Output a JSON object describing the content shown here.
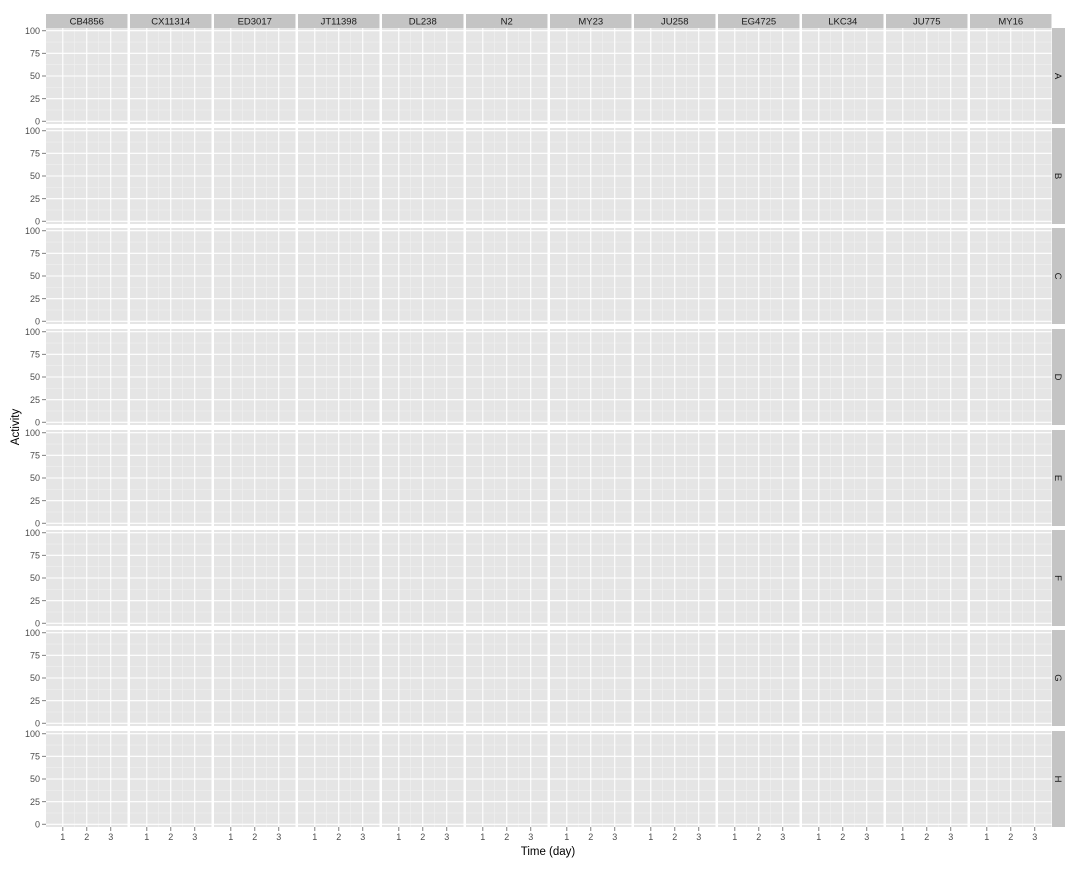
{
  "chart_data": {
    "type": "scatter",
    "xlabel": "Time (day)",
    "ylabel": "Activity",
    "xlim": [
      0.3,
      3.7
    ],
    "ylim": [
      -3,
      103
    ],
    "x_ticks": [
      "1",
      "2",
      "3"
    ],
    "y_ticks": [
      "0",
      "25",
      "50",
      "75",
      "100"
    ],
    "x_tick_values": [
      1,
      2,
      3
    ],
    "y_tick_values": [
      0,
      25,
      50,
      75,
      100
    ],
    "column_facets": [
      "CB4856",
      "CX11314",
      "ED3017",
      "JT11398",
      "DL238",
      "N2",
      "MY23",
      "JU258",
      "EG4725",
      "LKC34",
      "JU775",
      "MY16"
    ],
    "row_facets": [
      "A",
      "B",
      "C",
      "D",
      "E",
      "F",
      "G",
      "H"
    ],
    "series": [],
    "grid": true,
    "legend": "none",
    "panel_background": "#e5e5e5",
    "strip_background": "#c4c4c4",
    "grid_color": "#ffffff"
  }
}
